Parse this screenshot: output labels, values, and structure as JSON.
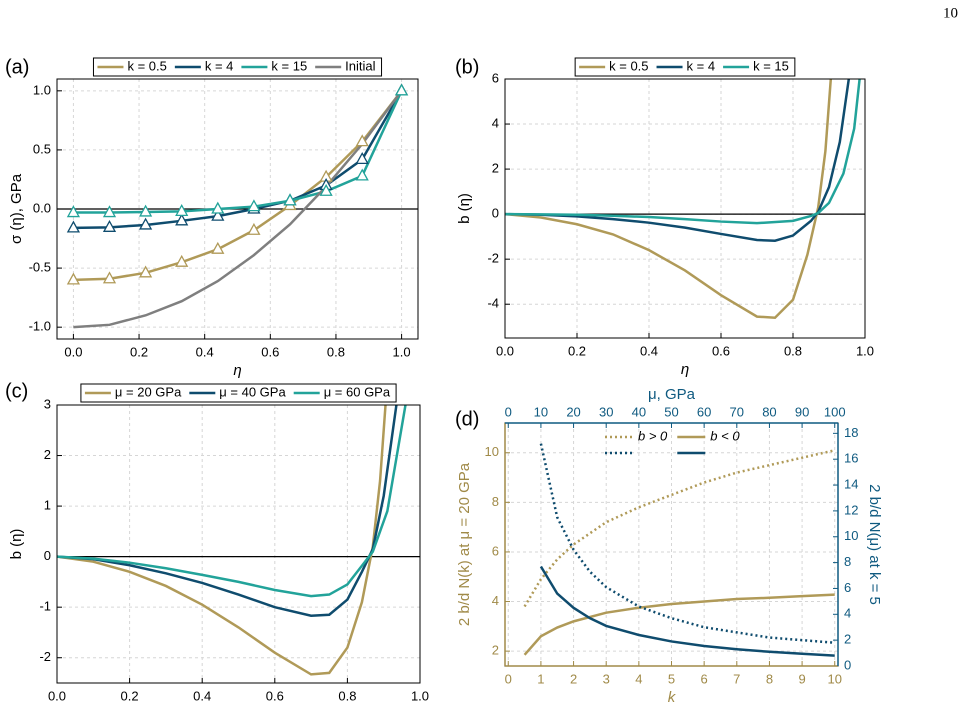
{
  "page_number": "10",
  "chart_data": [
    {
      "type": "line",
      "panel_label": "(a)",
      "x_label": "η",
      "y_label": "σ (η), GPa",
      "xlim": [
        -0.05,
        1.05
      ],
      "ylim": [
        -1.1,
        1.1
      ],
      "xticks": [
        {
          "value": 0,
          "label": "0.0"
        },
        0.2,
        0.4,
        0.6,
        0.8,
        {
          "value": 1,
          "label": "1.0"
        }
      ],
      "yticks": [
        {
          "value": -1,
          "label": "-1.0"
        },
        -0.5,
        {
          "value": 0,
          "label": "0.0"
        },
        0.5,
        {
          "value": 1,
          "label": "1.0"
        }
      ],
      "grid": true,
      "zero_line": true,
      "legend": "top-outside",
      "x": [
        0,
        0.11,
        0.22,
        0.33,
        0.44,
        0.55,
        0.66,
        0.77,
        0.88,
        1
      ],
      "series": [
        {
          "name": "k = 0.5",
          "color": "#b09a58",
          "marker": "triangle",
          "values": [
            -0.6,
            -0.59,
            -0.54,
            -0.45,
            -0.34,
            -0.18,
            0.03,
            0.27,
            0.57,
            1
          ]
        },
        {
          "name": "k = 4",
          "color": "#0f4c6e",
          "marker": "triangle",
          "values": [
            -0.16,
            -0.155,
            -0.135,
            -0.1,
            -0.06,
            0.0,
            0.07,
            0.2,
            0.42,
            1
          ]
        },
        {
          "name": "k = 15",
          "color": "#22a39a",
          "marker": "triangle",
          "values": [
            -0.03,
            -0.03,
            -0.025,
            -0.02,
            0.0,
            0.02,
            0.07,
            0.15,
            0.28,
            1
          ]
        },
        {
          "name": "Initial",
          "color": "#7f7f7f",
          "values": [
            -1,
            -0.98,
            -0.9,
            -0.78,
            -0.61,
            -0.39,
            -0.13,
            0.19,
            0.55,
            1
          ]
        }
      ]
    },
    {
      "type": "line",
      "panel_label": "(b)",
      "x_label": "η",
      "y_label": "b (η)",
      "xlim": [
        0,
        1
      ],
      "ylim": [
        -5.5,
        6
      ],
      "xticks": [
        {
          "value": 0,
          "label": "0.0"
        },
        0.2,
        0.4,
        0.6,
        0.8,
        {
          "value": 1,
          "label": "1.0"
        }
      ],
      "yticks": [
        -4,
        -2,
        0,
        2,
        4,
        6
      ],
      "grid": true,
      "zero_line": true,
      "legend": "top-outside",
      "series": [
        {
          "name": "k = 0.5",
          "color": "#b09a58",
          "x": [
            0,
            0.1,
            0.2,
            0.3,
            0.4,
            0.5,
            0.6,
            0.7,
            0.75,
            0.8,
            0.84,
            0.87,
            0.89,
            0.905
          ],
          "values": [
            0,
            -0.15,
            -0.45,
            -0.9,
            -1.6,
            -2.5,
            -3.6,
            -4.55,
            -4.6,
            -3.8,
            -1.8,
            0.3,
            2.8,
            6
          ]
        },
        {
          "name": "k = 4",
          "color": "#0f4c6e",
          "x": [
            0,
            0.1,
            0.2,
            0.3,
            0.4,
            0.5,
            0.6,
            0.7,
            0.75,
            0.8,
            0.85,
            0.87,
            0.9,
            0.93,
            0.955
          ],
          "values": [
            0,
            -0.03,
            -0.1,
            -0.22,
            -0.38,
            -0.6,
            -0.88,
            -1.15,
            -1.18,
            -0.95,
            -0.3,
            0.1,
            1.2,
            3.2,
            6
          ]
        },
        {
          "name": "k = 15",
          "color": "#22a39a",
          "x": [
            0,
            0.1,
            0.2,
            0.3,
            0.4,
            0.5,
            0.6,
            0.7,
            0.8,
            0.85,
            0.87,
            0.9,
            0.94,
            0.97,
            0.985
          ],
          "values": [
            0,
            -0.01,
            -0.03,
            -0.07,
            -0.13,
            -0.22,
            -0.33,
            -0.4,
            -0.3,
            -0.08,
            0.05,
            0.5,
            1.8,
            3.8,
            6
          ]
        }
      ]
    },
    {
      "type": "line",
      "panel_label": "(c)",
      "x_label": "η",
      "y_label": "b (η)",
      "xlim": [
        0,
        1
      ],
      "ylim": [
        -2.5,
        3
      ],
      "xticks": [
        {
          "value": 0,
          "label": "0.0"
        },
        0.2,
        0.4,
        0.6,
        0.8,
        {
          "value": 1,
          "label": "1.0"
        }
      ],
      "yticks": [
        -2,
        -1,
        0,
        1,
        2,
        3
      ],
      "grid": true,
      "zero_line": true,
      "legend": "top-outside",
      "series": [
        {
          "name": "μ = 20 GPa",
          "color": "#b09a58",
          "x": [
            0,
            0.1,
            0.2,
            0.3,
            0.4,
            0.5,
            0.6,
            0.7,
            0.75,
            0.8,
            0.84,
            0.87,
            0.89,
            0.905
          ],
          "values": [
            0,
            -0.1,
            -0.3,
            -0.58,
            -0.95,
            -1.4,
            -1.9,
            -2.33,
            -2.3,
            -1.8,
            -0.9,
            0.2,
            1.5,
            3
          ]
        },
        {
          "name": "μ = 40 GPa",
          "color": "#0f4c6e",
          "x": [
            0,
            0.1,
            0.2,
            0.3,
            0.4,
            0.5,
            0.6,
            0.7,
            0.75,
            0.8,
            0.84,
            0.87,
            0.9,
            0.935
          ],
          "values": [
            0,
            -0.05,
            -0.17,
            -0.33,
            -0.52,
            -0.75,
            -1.0,
            -1.17,
            -1.15,
            -0.85,
            -0.3,
            0.15,
            1.2,
            3
          ]
        },
        {
          "name": "μ = 60 GPa",
          "color": "#22a39a",
          "x": [
            0,
            0.1,
            0.2,
            0.3,
            0.4,
            0.5,
            0.6,
            0.7,
            0.75,
            0.8,
            0.84,
            0.87,
            0.91,
            0.96
          ],
          "values": [
            0,
            -0.04,
            -0.12,
            -0.23,
            -0.36,
            -0.5,
            -0.66,
            -0.78,
            -0.75,
            -0.55,
            -0.18,
            0.1,
            0.9,
            3
          ]
        }
      ]
    },
    {
      "type": "line",
      "panel_label": "(d)",
      "x_label": "k",
      "y_label": "2 b/d N(k) at μ = 20 GPa",
      "x2_label": "μ, GPa",
      "y2_label": "2 b/d N(μ) at k = 5",
      "xlim": [
        -0.1,
        10.1
      ],
      "ylim": [
        1.4,
        11.2
      ],
      "x2lim": [
        -1,
        101
      ],
      "y2lim": [
        0,
        18.8
      ],
      "xticks": [
        0,
        1,
        2,
        3,
        4,
        5,
        6,
        7,
        8,
        9,
        10
      ],
      "yticks": [
        2,
        4,
        6,
        8,
        10
      ],
      "x2ticks": [
        0,
        10,
        20,
        30,
        40,
        50,
        60,
        70,
        80,
        90,
        100
      ],
      "y2ticks": [
        0,
        2,
        4,
        6,
        8,
        10,
        12,
        14,
        16,
        18
      ],
      "axis_colors": {
        "x": "#a08a48",
        "y": "#a08a48",
        "x2": "#0f5a80",
        "y2": "#0f5a80"
      },
      "grid": true,
      "legend": "top-inside",
      "legend_entries": [
        {
          "label": "b > 0",
          "dash": "dotted"
        },
        {
          "label": "b < 0",
          "dash": "solid"
        }
      ],
      "series": [
        {
          "color": "#b09a58",
          "dash": "dotted",
          "x": [
            0.5,
            1,
            1.5,
            2,
            3,
            4,
            5,
            6,
            7,
            8,
            9,
            10
          ],
          "values": [
            3.8,
            4.9,
            5.7,
            6.3,
            7.2,
            7.8,
            8.3,
            8.8,
            9.2,
            9.5,
            9.8,
            10.1
          ]
        },
        {
          "color": "#b09a58",
          "dash": "solid",
          "x": [
            0.5,
            1,
            1.5,
            2,
            3,
            4,
            5,
            6,
            7,
            8,
            9,
            10
          ],
          "values": [
            1.85,
            2.6,
            2.95,
            3.2,
            3.55,
            3.75,
            3.9,
            4.0,
            4.1,
            4.15,
            4.22,
            4.28
          ]
        },
        {
          "color": "#0f4c6e",
          "dash": "dotted",
          "axis": "y2",
          "x": [
            10,
            15,
            20,
            25,
            30,
            40,
            50,
            60,
            70,
            80,
            90,
            100
          ],
          "values": [
            17.2,
            11.5,
            9.0,
            7.3,
            6.1,
            4.6,
            3.7,
            3.0,
            2.6,
            2.2,
            2.0,
            1.8
          ]
        },
        {
          "color": "#0f4c6e",
          "dash": "solid",
          "axis": "y2",
          "x": [
            10,
            15,
            20,
            25,
            30,
            40,
            50,
            60,
            70,
            80,
            90,
            100
          ],
          "values": [
            7.7,
            5.6,
            4.5,
            3.7,
            3.1,
            2.4,
            1.9,
            1.55,
            1.3,
            1.1,
            0.95,
            0.8
          ]
        }
      ]
    }
  ]
}
